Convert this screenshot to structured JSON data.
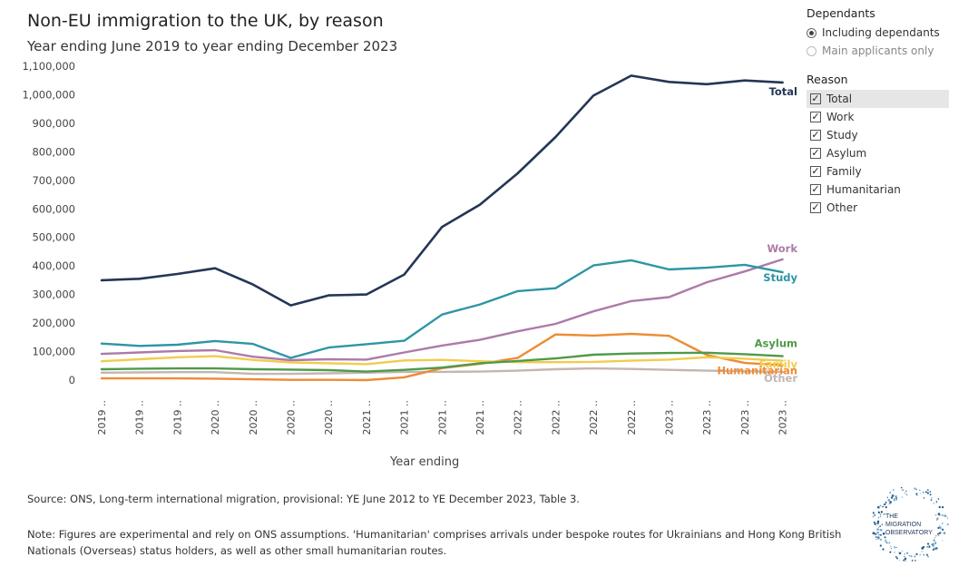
{
  "header": {
    "title": "Non-EU immigration to the UK, by reason",
    "subtitle": "Year ending June 2019 to year ending December 2023"
  },
  "footer": {
    "source": "Source: ONS, Long-term international migration, provisional: YE June 2012 to YE December 2023, Table 3.",
    "note": "Note: Figures are experimental and rely on ONS assumptions. 'Humanitarian' comprises arrivals under bespoke routes for Ukrainians and Hong Kong British Nationals (Overseas) status holders, as well as other small humanitarian routes."
  },
  "filters": {
    "dependants": {
      "title": "Dependants",
      "options": [
        {
          "label": "Including dependants",
          "selected": true
        },
        {
          "label": "Main applicants only",
          "selected": false
        }
      ]
    },
    "reason": {
      "title": "Reason",
      "options": [
        {
          "label": "Total",
          "checked": true
        },
        {
          "label": "Work",
          "checked": true
        },
        {
          "label": "Study",
          "checked": true
        },
        {
          "label": "Asylum",
          "checked": true
        },
        {
          "label": "Family",
          "checked": true
        },
        {
          "label": "Humanitarian",
          "checked": true
        },
        {
          "label": "Other",
          "checked": true
        }
      ]
    }
  },
  "logo": {
    "line1": "THE",
    "line2": "MIGRATION",
    "line3": "OBSERVATORY"
  },
  "chart_data": {
    "type": "line",
    "xlabel": "Year ending",
    "ylabel": "",
    "ylim": [
      0,
      1100000
    ],
    "yticks": [
      0,
      100000,
      200000,
      300000,
      400000,
      500000,
      600000,
      700000,
      800000,
      900000,
      1000000,
      1100000
    ],
    "ytick_labels": [
      "0",
      "100,000",
      "200,000",
      "300,000",
      "400,000",
      "500,000",
      "600,000",
      "700,000",
      "800,000",
      "900,000",
      "1,000,000",
      "1,100,000"
    ],
    "categories": [
      "2019 ..",
      "2019 ..",
      "2019 ..",
      "2020 ..",
      "2020 ..",
      "2020 ..",
      "2020 ..",
      "2021 ..",
      "2021 ..",
      "2021 ..",
      "2021 ..",
      "2022 ..",
      "2022 ..",
      "2022 ..",
      "2022 ..",
      "2023 ..",
      "2023 ..",
      "2023 ..",
      "2023 .."
    ],
    "grid": false,
    "series": [
      {
        "name": "Total",
        "color": "#243656",
        "values": [
          350000,
          355000,
          372000,
          392000,
          335000,
          262000,
          297000,
          300000,
          370000,
          537000,
          615000,
          725000,
          852000,
          997000,
          1067000,
          1045000,
          1037000,
          1050000,
          1043000
        ]
      },
      {
        "name": "Work",
        "color": "#ad7aa8",
        "values": [
          92000,
          97000,
          102000,
          105000,
          82000,
          70000,
          73000,
          72000,
          97000,
          121000,
          141000,
          171000,
          197000,
          241000,
          277000,
          291000,
          343000,
          381000,
          423000
        ]
      },
      {
        "name": "Study",
        "color": "#2e95a5",
        "values": [
          128000,
          120000,
          124000,
          137000,
          127000,
          78000,
          114000,
          126000,
          138000,
          230000,
          265000,
          312000,
          322000,
          402000,
          420000,
          388000,
          394000,
          404000,
          378000
        ]
      },
      {
        "name": "Asylum",
        "color": "#4f9a4a",
        "values": [
          38000,
          40000,
          41000,
          41000,
          38000,
          37000,
          35000,
          30000,
          36000,
          44000,
          59000,
          67000,
          76000,
          89000,
          93000,
          95000,
          96000,
          91000,
          84000
        ]
      },
      {
        "name": "Family",
        "color": "#f2cc4d",
        "values": [
          66000,
          73000,
          80000,
          84000,
          71000,
          62000,
          59000,
          56000,
          69000,
          71000,
          66000,
          63000,
          63000,
          64000,
          68000,
          72000,
          80000,
          75000,
          68000
        ]
      },
      {
        "name": "Humanitarian",
        "color": "#ee8b33",
        "values": [
          6000,
          6000,
          6000,
          5000,
          3000,
          1000,
          1000,
          0,
          10000,
          42000,
          57000,
          78000,
          160000,
          156000,
          162000,
          155000,
          88000,
          60000,
          52000
        ]
      },
      {
        "name": "Other",
        "color": "#c2b6b1",
        "values": [
          26000,
          27000,
          28000,
          28000,
          22000,
          22000,
          24000,
          26000,
          29000,
          29000,
          30000,
          33000,
          38000,
          41000,
          39000,
          36000,
          33000,
          31000,
          29000
        ]
      }
    ]
  }
}
